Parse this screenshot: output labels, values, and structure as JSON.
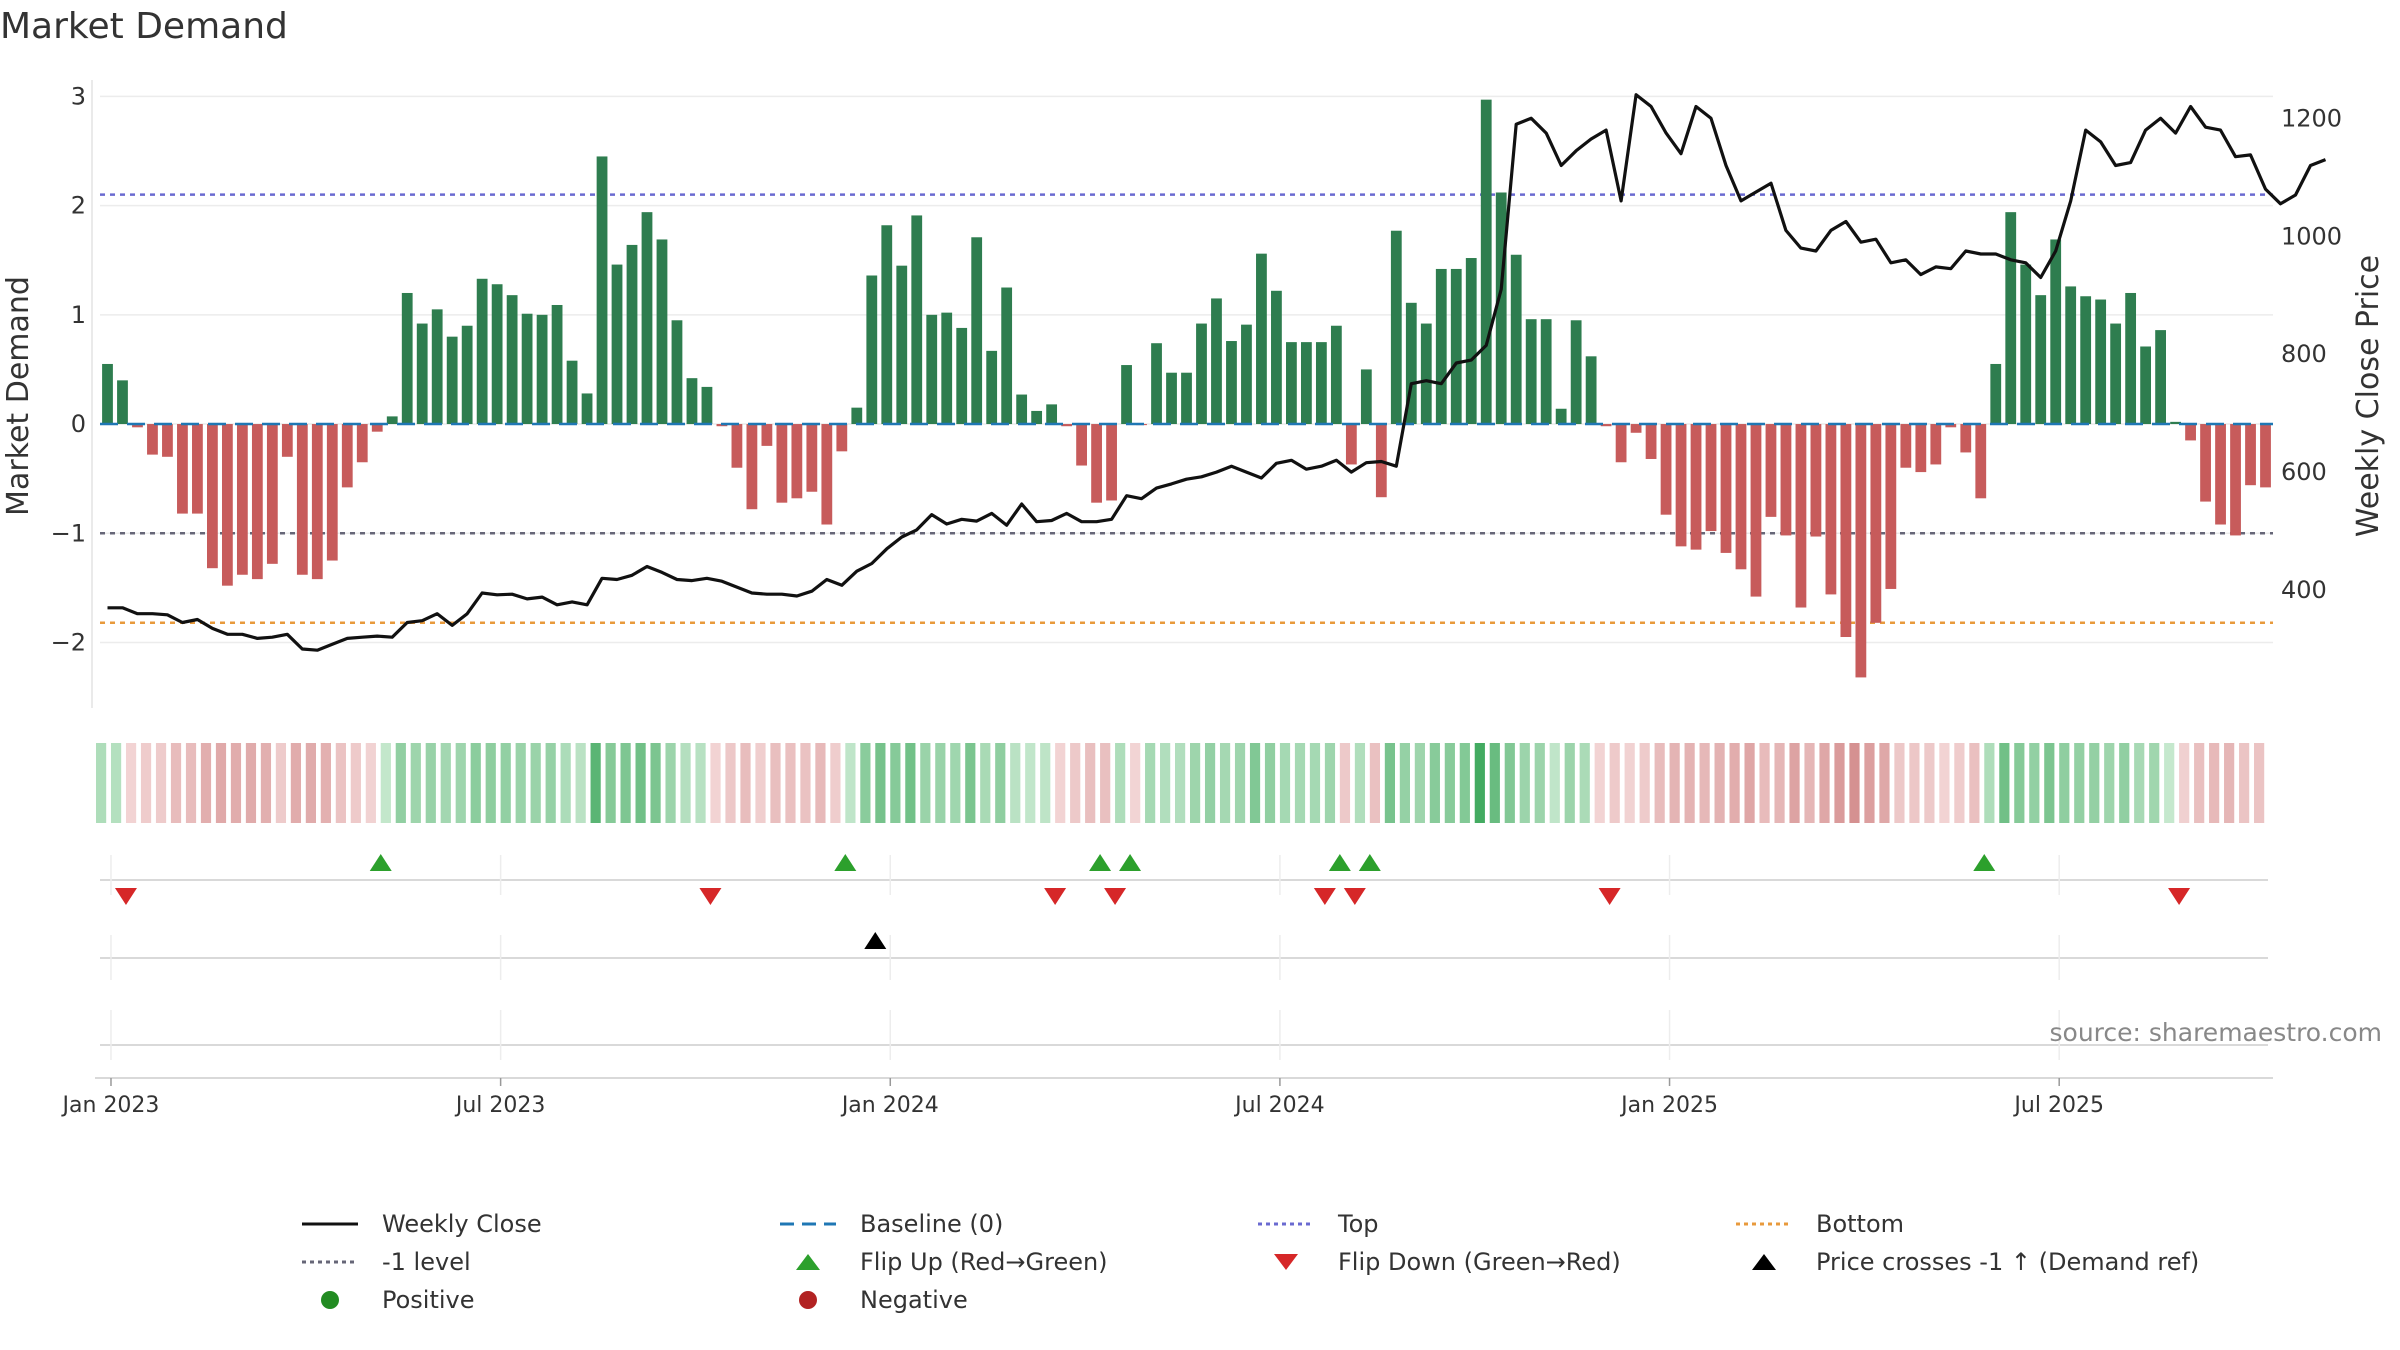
{
  "title": "Market Demand",
  "source_note": "source: sharemaestro.com",
  "legend": [
    {
      "key": "weekly_close",
      "label": "Weekly Close"
    },
    {
      "key": "baseline",
      "label": "Baseline (0)"
    },
    {
      "key": "top",
      "label": "Top"
    },
    {
      "key": "bottom",
      "label": "Bottom"
    },
    {
      "key": "minus1",
      "label": "-1 level"
    },
    {
      "key": "flip_up",
      "label": "Flip Up (Red→Green)"
    },
    {
      "key": "flip_down",
      "label": "Flip Down (Green→Red)"
    },
    {
      "key": "price_cross",
      "label": "Price crosses -1 ↑ (Demand ref)"
    },
    {
      "key": "positive",
      "label": "Positive"
    },
    {
      "key": "negative",
      "label": "Negative"
    }
  ],
  "colors": {
    "positive_bar": "#2e7d4f",
    "negative_bar": "#c75b5b",
    "line": "#111111",
    "baseline": "#1f77b4",
    "top": "#6a6ad0",
    "bottom": "#e89a3c",
    "minus1": "#666677",
    "flip_up": "#2ca02c",
    "flip_down": "#d62728",
    "price_cross": "#000000",
    "positive_dot": "#228b22",
    "negative_dot": "#b22222"
  },
  "chart_data": {
    "type": "bar",
    "title": "Market Demand",
    "ylabel": "Market Demand",
    "y2label": "Weekly Close Price",
    "ylim": [
      -2.6,
      3.15
    ],
    "y_ticks": [
      -2,
      -1,
      0,
      1,
      2,
      3
    ],
    "y_tick_labels": [
      "−2",
      "−1",
      "0",
      "1",
      "2",
      "3"
    ],
    "y2lim": [
      200,
      1265
    ],
    "y2_ticks": [
      400,
      600,
      800,
      1000,
      1200
    ],
    "y2_tick_labels": [
      "400",
      "600",
      "800",
      "1000",
      "1200"
    ],
    "x_tick_labels": [
      "Jan 2023",
      "Jul 2023",
      "Jan 2024",
      "Jul 2024",
      "Jan 2025",
      "Jul 2025"
    ],
    "x_tick_weeks": [
      1,
      27,
      53,
      79,
      105,
      131
    ],
    "reference_lines": {
      "baseline": 0,
      "top": 2.1,
      "minus1": -1,
      "bottom": -1.82
    },
    "series": [
      {
        "name": "Market Demand",
        "values": [
          0.55,
          0.4,
          -0.03,
          -0.28,
          -0.3,
          -0.82,
          -0.82,
          -1.32,
          -1.48,
          -1.38,
          -1.42,
          -1.28,
          -0.3,
          -1.38,
          -1.42,
          -1.25,
          -0.58,
          -0.35,
          -0.07,
          0.07,
          1.2,
          0.92,
          1.05,
          0.8,
          0.9,
          1.33,
          1.28,
          1.18,
          1.01,
          1.0,
          1.09,
          0.58,
          0.28,
          2.45,
          1.46,
          1.64,
          1.94,
          1.69,
          0.95,
          0.42,
          0.34,
          -0.02,
          -0.4,
          -0.78,
          -0.2,
          -0.72,
          -0.68,
          -0.62,
          -0.92,
          -0.25,
          0.15,
          1.36,
          1.82,
          1.45,
          1.91,
          1.0,
          1.02,
          0.88,
          1.71,
          0.67,
          1.25,
          0.27,
          0.12,
          0.18,
          -0.02,
          -0.38,
          -0.72,
          -0.7,
          0.54,
          -0.01,
          0.74,
          0.47,
          0.47,
          0.92,
          1.15,
          0.76,
          0.91,
          1.56,
          1.22,
          0.75,
          0.75,
          0.75,
          0.9,
          -0.37,
          0.5,
          -0.67,
          1.77,
          1.11,
          0.92,
          1.42,
          1.42,
          1.52,
          2.97,
          2.12,
          1.55,
          0.96,
          0.96,
          0.14,
          0.95,
          0.62,
          -0.02,
          -0.35,
          -0.08,
          -0.32,
          -0.83,
          -1.12,
          -1.15,
          -0.98,
          -1.18,
          -1.33,
          -1.58,
          -0.85,
          -1.02,
          -1.68,
          -1.03,
          -1.56,
          -1.95,
          -2.32,
          -1.82,
          -1.51,
          -0.4,
          -0.44,
          -0.37,
          -0.03,
          -0.26,
          -0.68,
          0.55,
          1.94,
          1.46,
          1.18,
          1.69,
          1.26,
          1.17,
          1.14,
          0.92,
          1.2,
          0.71,
          0.86,
          0.02,
          -0.15,
          -0.71,
          -0.92,
          -1.02,
          -0.56,
          -0.58
        ]
      },
      {
        "name": "Weekly Close",
        "values": [
          370,
          370,
          360,
          360,
          358,
          345,
          350,
          335,
          325,
          325,
          318,
          320,
          325,
          300,
          298,
          308,
          318,
          320,
          322,
          320,
          345,
          348,
          360,
          340,
          360,
          395,
          392,
          393,
          385,
          388,
          375,
          380,
          375,
          420,
          418,
          425,
          440,
          430,
          418,
          416,
          420,
          415,
          405,
          395,
          393,
          393,
          390,
          398,
          418,
          408,
          432,
          445,
          470,
          490,
          502,
          528,
          512,
          520,
          517,
          530,
          510,
          546,
          516,
          518,
          530,
          516,
          516,
          520,
          560,
          555,
          573,
          580,
          588,
          592,
          600,
          610,
          600,
          590,
          615,
          620,
          605,
          610,
          620,
          600,
          616,
          618,
          610,
          750,
          755,
          750,
          785,
          790,
          815,
          910,
          1190,
          1200,
          1175,
          1120,
          1145,
          1165,
          1180,
          1060,
          1240,
          1220,
          1175,
          1140,
          1220,
          1200,
          1120,
          1060,
          1075,
          1090,
          1010,
          980,
          975,
          1010,
          1025,
          990,
          995,
          955,
          960,
          935,
          948,
          945,
          975,
          970,
          970,
          960,
          955,
          930,
          975,
          1060,
          1180,
          1160,
          1120,
          1125,
          1180,
          1200,
          1175,
          1220,
          1185,
          1180,
          1135,
          1138,
          1080,
          1055,
          1070,
          1120,
          1130
        ]
      }
    ],
    "flip_up_weeks": [
      19,
      50,
      67,
      69,
      83,
      85,
      126
    ],
    "flip_down_weeks": [
      2,
      41,
      64,
      68,
      82,
      84,
      101,
      139
    ],
    "price_cross_weeks": [
      52
    ]
  }
}
